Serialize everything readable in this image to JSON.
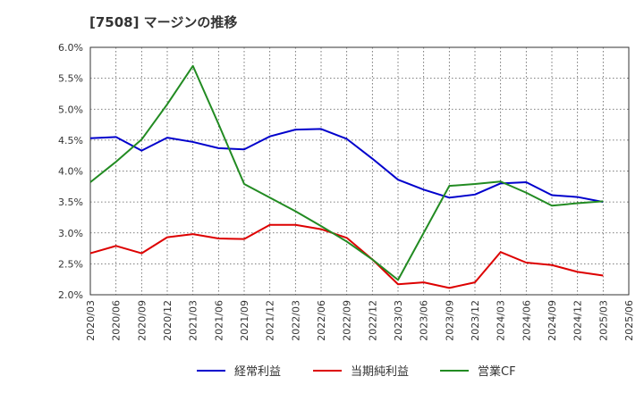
{
  "chart_data": {
    "type": "line",
    "title": "[7508]  マージンの推移",
    "xlabel": "",
    "ylabel": "",
    "x": [
      "2020/03",
      "2020/06",
      "2020/09",
      "2020/12",
      "2021/03",
      "2021/06",
      "2021/09",
      "2021/12",
      "2022/03",
      "2022/06",
      "2022/09",
      "2022/12",
      "2023/03",
      "2023/06",
      "2023/09",
      "2023/12",
      "2024/03",
      "2024/06",
      "2024/09",
      "2024/12",
      "2025/03",
      "2025/06"
    ],
    "y_ticks": [
      "6.0%",
      "5.5%",
      "5.0%",
      "4.5%",
      "4.0%",
      "3.5%",
      "3.0%",
      "2.5%",
      "2.0%"
    ],
    "ylim": [
      2.0,
      6.0
    ],
    "grid": true,
    "legend_position": "bottom",
    "series": [
      {
        "name": "経常利益",
        "color": "#0000cc",
        "values": [
          4.53,
          4.55,
          4.33,
          4.54,
          4.47,
          4.37,
          4.35,
          4.56,
          4.67,
          4.68,
          4.52,
          4.2,
          3.86,
          3.7,
          3.57,
          3.62,
          3.8,
          3.82,
          3.61,
          3.58,
          3.5,
          null
        ]
      },
      {
        "name": "当期純利益",
        "color": "#dd0000",
        "values": [
          2.67,
          2.79,
          2.67,
          2.93,
          2.98,
          2.91,
          2.9,
          3.13,
          3.13,
          3.06,
          2.92,
          2.57,
          2.17,
          2.2,
          2.11,
          2.2,
          2.69,
          2.52,
          2.48,
          2.37,
          2.31,
          null
        ]
      },
      {
        "name": "営業CF",
        "color": "#228b22",
        "values": [
          3.82,
          4.15,
          4.51,
          5.08,
          5.7,
          4.76,
          3.79,
          3.57,
          3.35,
          3.11,
          2.86,
          2.57,
          2.24,
          3.0,
          3.76,
          3.79,
          3.83,
          3.65,
          3.44,
          3.48,
          3.51,
          null
        ]
      }
    ]
  }
}
